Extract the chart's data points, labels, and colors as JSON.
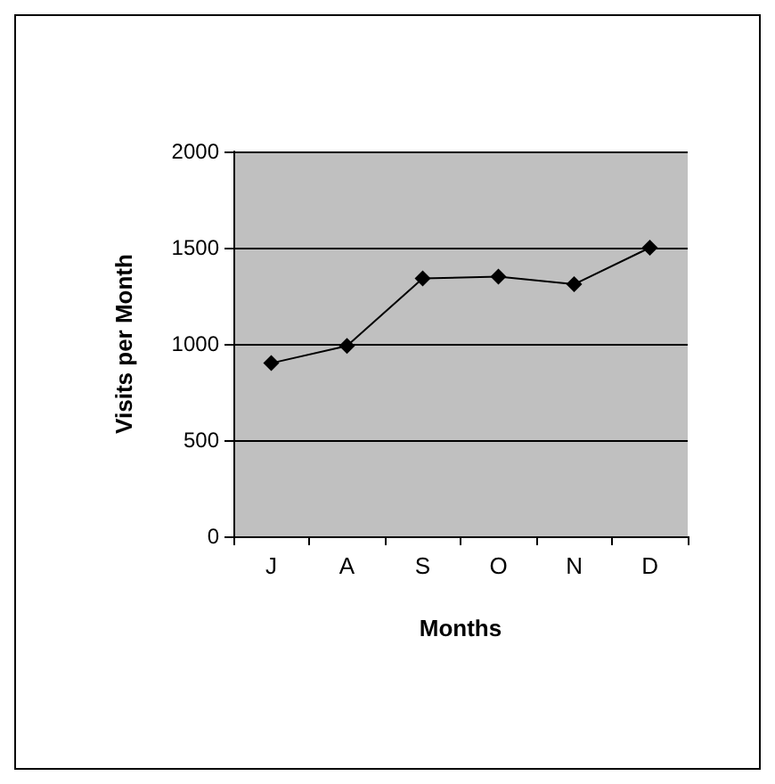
{
  "chart_data": {
    "type": "line",
    "xlabel": "Months",
    "ylabel": "Visits per Month",
    "categories": [
      "J",
      "A",
      "S",
      "O",
      "N",
      "D"
    ],
    "series": [
      {
        "color": "#000000",
        "values": [
          900,
          990,
          1340,
          1350,
          1310,
          1500
        ]
      }
    ],
    "ylim": [
      0,
      2000
    ],
    "yticks": [
      0,
      500,
      1000,
      1500,
      2000
    ],
    "grid": "y",
    "marker": "diamond",
    "line_style": "solid"
  }
}
